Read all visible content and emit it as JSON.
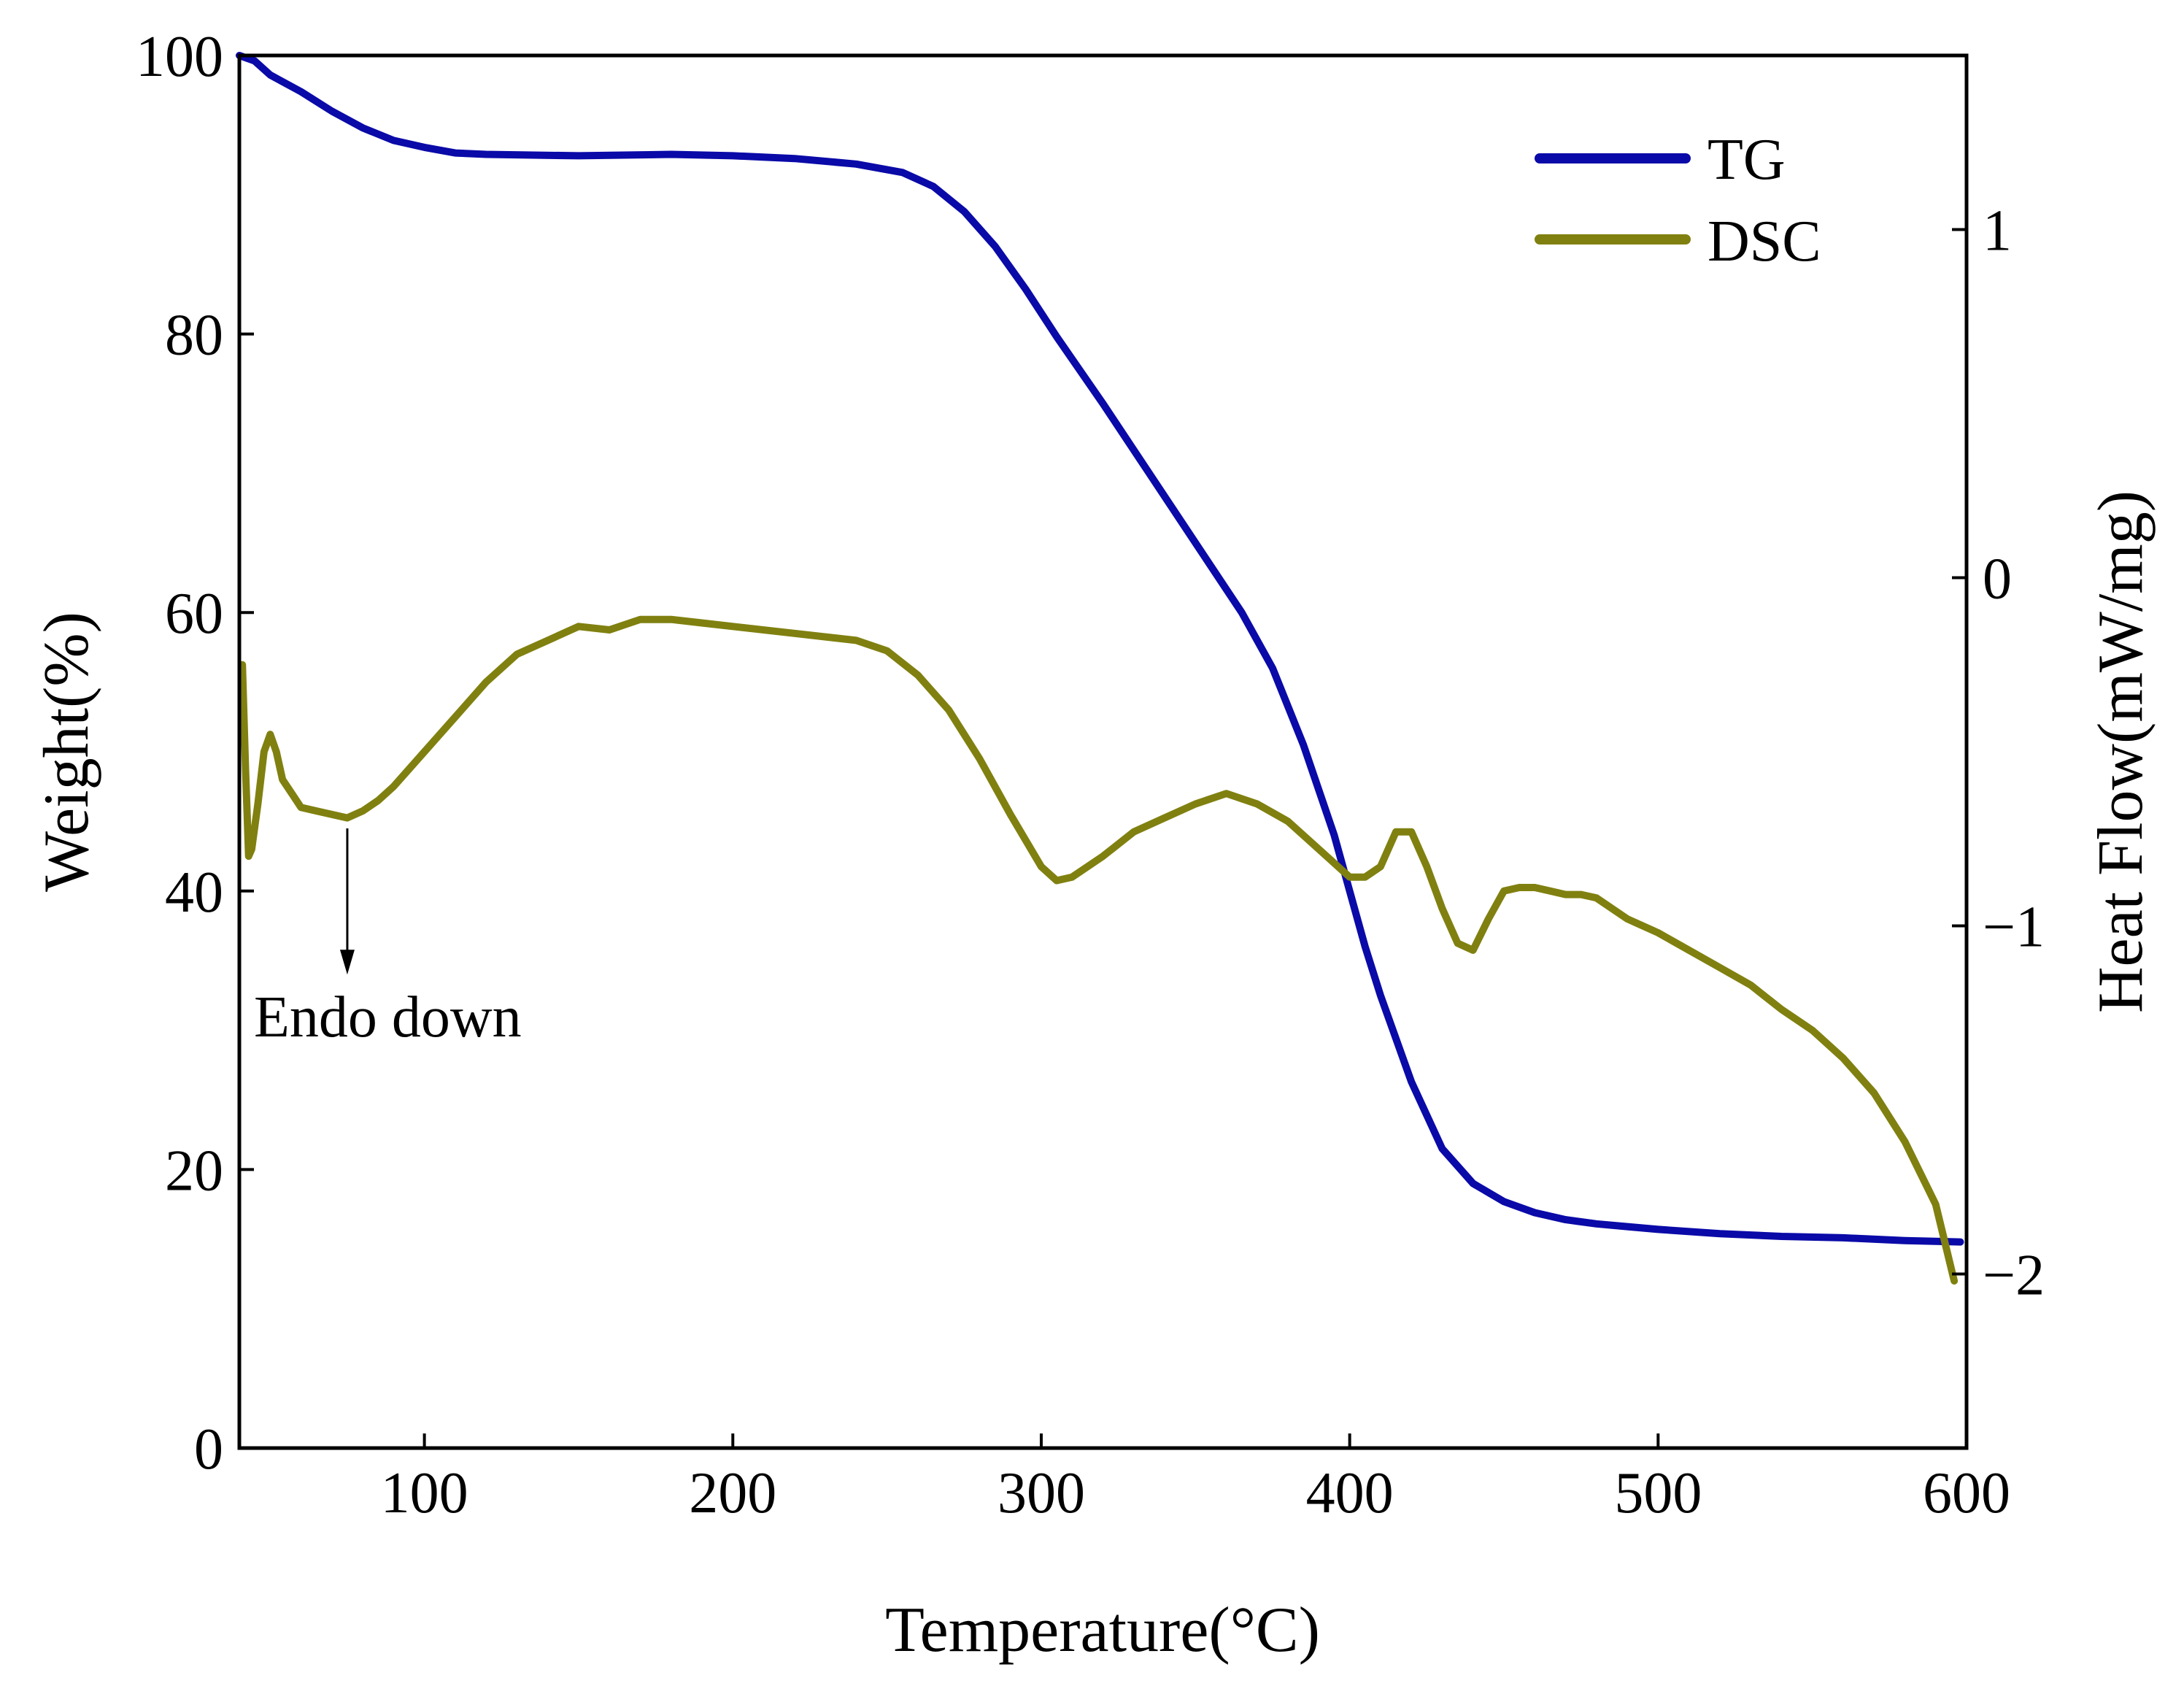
{
  "chart_data": {
    "type": "line",
    "xlabel": "Temperature(°C)",
    "ylabel_left": "Weight(%)",
    "ylabel_right": "Heat Flow(mW/mg)",
    "xlim": [
      40,
      600
    ],
    "ylim_left": [
      0,
      100
    ],
    "ylim_right": [
      -2.5,
      1.5
    ],
    "x_ticks": [
      100,
      200,
      300,
      400,
      500,
      600
    ],
    "y_ticks_left": [
      0,
      20,
      40,
      60,
      80,
      100
    ],
    "y_ticks_right": [
      1,
      0,
      -1,
      -2
    ],
    "y_tick_labels_right": [
      "1",
      "0",
      "−1",
      "−2"
    ],
    "grid": false,
    "legend_position": "top-right",
    "annotation": {
      "text": "Endo down",
      "arrow_from": [
        75,
        44.5
      ],
      "arrow_to": [
        75,
        34
      ]
    },
    "series": [
      {
        "name": "TG",
        "axis": "left",
        "color": "#0a0aa8",
        "points": [
          [
            40,
            100
          ],
          [
            45,
            99.6
          ],
          [
            50,
            98.6
          ],
          [
            60,
            97.4
          ],
          [
            70,
            96
          ],
          [
            80,
            94.8
          ],
          [
            90,
            93.9
          ],
          [
            100,
            93.4
          ],
          [
            110,
            93
          ],
          [
            120,
            92.9
          ],
          [
            150,
            92.8
          ],
          [
            180,
            92.9
          ],
          [
            200,
            92.8
          ],
          [
            220,
            92.6
          ],
          [
            240,
            92.2
          ],
          [
            255,
            91.6
          ],
          [
            265,
            90.6
          ],
          [
            275,
            88.8
          ],
          [
            285,
            86.3
          ],
          [
            295,
            83.2
          ],
          [
            305,
            79.8
          ],
          [
            320,
            75
          ],
          [
            335,
            70
          ],
          [
            350,
            65
          ],
          [
            365,
            60
          ],
          [
            375,
            56
          ],
          [
            385,
            50.5
          ],
          [
            395,
            44
          ],
          [
            400,
            40
          ],
          [
            405,
            36
          ],
          [
            410,
            32.5
          ],
          [
            420,
            26.3
          ],
          [
            430,
            21.5
          ],
          [
            440,
            19
          ],
          [
            450,
            17.7
          ],
          [
            460,
            16.9
          ],
          [
            470,
            16.4
          ],
          [
            480,
            16.1
          ],
          [
            490,
            15.9
          ],
          [
            500,
            15.7
          ],
          [
            520,
            15.4
          ],
          [
            540,
            15.2
          ],
          [
            560,
            15.1
          ],
          [
            580,
            14.9
          ],
          [
            598,
            14.8
          ]
        ]
      },
      {
        "name": "DSC",
        "axis": "right",
        "color": "#808010",
        "points": [
          [
            41,
            -0.25
          ],
          [
            42,
            -0.55
          ],
          [
            43,
            -0.8
          ],
          [
            44,
            -0.78
          ],
          [
            46,
            -0.65
          ],
          [
            48,
            -0.5
          ],
          [
            50,
            -0.45
          ],
          [
            52,
            -0.5
          ],
          [
            54,
            -0.58
          ],
          [
            57,
            -0.62
          ],
          [
            60,
            -0.66
          ],
          [
            65,
            -0.67
          ],
          [
            70,
            -0.68
          ],
          [
            75,
            -0.69
          ],
          [
            80,
            -0.67
          ],
          [
            85,
            -0.64
          ],
          [
            90,
            -0.6
          ],
          [
            100,
            -0.5
          ],
          [
            110,
            -0.4
          ],
          [
            120,
            -0.3
          ],
          [
            130,
            -0.22
          ],
          [
            140,
            -0.18
          ],
          [
            150,
            -0.14
          ],
          [
            160,
            -0.15
          ],
          [
            170,
            -0.12
          ],
          [
            175,
            -0.12
          ],
          [
            180,
            -0.12
          ],
          [
            190,
            -0.13
          ],
          [
            200,
            -0.14
          ],
          [
            220,
            -0.16
          ],
          [
            240,
            -0.18
          ],
          [
            250,
            -0.21
          ],
          [
            260,
            -0.28
          ],
          [
            270,
            -0.38
          ],
          [
            280,
            -0.52
          ],
          [
            290,
            -0.68
          ],
          [
            300,
            -0.83
          ],
          [
            305,
            -0.87
          ],
          [
            310,
            -0.86
          ],
          [
            320,
            -0.8
          ],
          [
            330,
            -0.73
          ],
          [
            340,
            -0.69
          ],
          [
            350,
            -0.65
          ],
          [
            360,
            -0.62
          ],
          [
            370,
            -0.65
          ],
          [
            380,
            -0.7
          ],
          [
            390,
            -0.78
          ],
          [
            400,
            -0.86
          ],
          [
            405,
            -0.86
          ],
          [
            410,
            -0.83
          ],
          [
            415,
            -0.73
          ],
          [
            420,
            -0.73
          ],
          [
            425,
            -0.83
          ],
          [
            430,
            -0.95
          ],
          [
            435,
            -1.05
          ],
          [
            440,
            -1.07
          ],
          [
            445,
            -0.98
          ],
          [
            450,
            -0.9
          ],
          [
            455,
            -0.89
          ],
          [
            460,
            -0.89
          ],
          [
            465,
            -0.9
          ],
          [
            470,
            -0.91
          ],
          [
            475,
            -0.91
          ],
          [
            480,
            -0.92
          ],
          [
            490,
            -0.98
          ],
          [
            500,
            -1.02
          ],
          [
            510,
            -1.07
          ],
          [
            520,
            -1.12
          ],
          [
            530,
            -1.17
          ],
          [
            540,
            -1.24
          ],
          [
            550,
            -1.3
          ],
          [
            560,
            -1.38
          ],
          [
            570,
            -1.48
          ],
          [
            580,
            -1.62
          ],
          [
            590,
            -1.8
          ],
          [
            596,
            -2.02
          ]
        ]
      }
    ]
  }
}
